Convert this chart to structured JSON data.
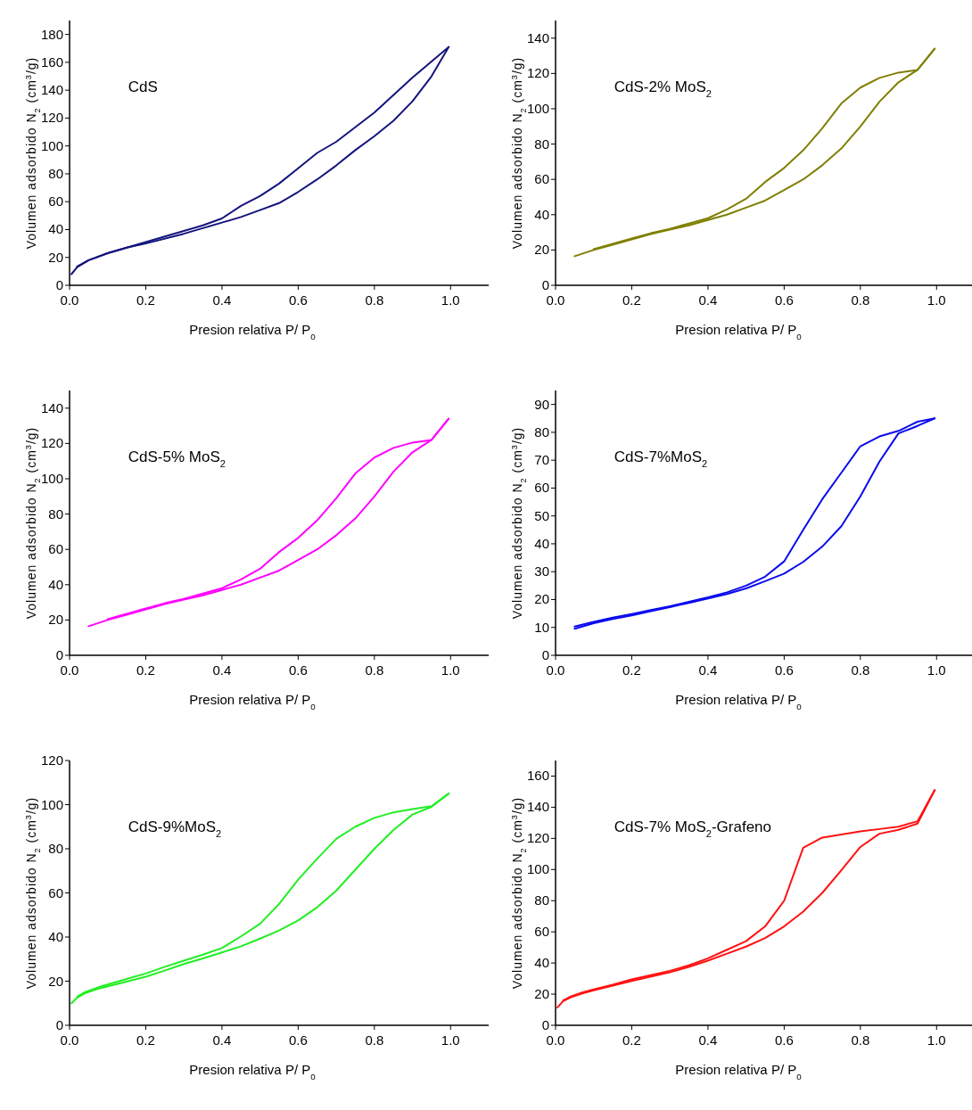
{
  "chart_data": [
    {
      "type": "line",
      "title": "CdS",
      "xlabel": "Presion relativa P/ P$_{0}$",
      "ylabel": "Volumen adsorbido N$_{2}$ (cm$^{3}$/g)",
      "xlim": [
        0,
        1.1
      ],
      "xticks": [
        {
          "value": 0,
          "label": "0.0"
        },
        {
          "value": 0.2,
          "label": "0.2"
        },
        {
          "value": 0.4,
          "label": "0.4"
        },
        {
          "value": 0.6,
          "label": "0.6"
        },
        {
          "value": 0.8,
          "label": "0.8"
        },
        {
          "value": 1,
          "label": "1.0"
        }
      ],
      "ylim": [
        0,
        190
      ],
      "yticks": [
        0,
        20,
        40,
        60,
        80,
        100,
        120,
        140,
        160,
        180
      ],
      "series": [
        {
          "color": "#14147d",
          "x": [
            0.005,
            0.02,
            0.05,
            0.1,
            0.15,
            0.2,
            0.3,
            0.35,
            0.4,
            0.45,
            0.5,
            0.55,
            0.6,
            0.65,
            0.7,
            0.75,
            0.8,
            0.85,
            0.9,
            0.95,
            0.995
          ],
          "values": [
            8,
            13,
            18,
            23,
            27,
            30,
            37,
            41,
            45,
            49,
            54,
            59,
            67,
            76,
            86,
            97,
            107,
            118,
            132,
            150,
            171
          ]
        },
        {
          "color": "#14147d",
          "x": [
            0.02,
            0.05,
            0.1,
            0.2,
            0.3,
            0.35,
            0.4,
            0.45,
            0.5,
            0.55,
            0.6,
            0.65,
            0.7,
            0.8,
            0.9,
            0.995
          ],
          "values": [
            13.5,
            18,
            23,
            31,
            39,
            43,
            48,
            57,
            64,
            73,
            84,
            95,
            103,
            124,
            149,
            171
          ]
        }
      ]
    },
    {
      "type": "line",
      "title": "CdS-2% MoS$_{2}$",
      "xlabel": "Presion relativa P/ P$_{0}$",
      "ylabel": "Volumen adsorbido N$_{2}$ (cm$^{3}$/g)",
      "xlim": [
        0,
        1.1
      ],
      "xticks": [
        {
          "value": 0,
          "label": "0.0"
        },
        {
          "value": 0.2,
          "label": "0.2"
        },
        {
          "value": 0.4,
          "label": "0.4"
        },
        {
          "value": 0.6,
          "label": "0.6"
        },
        {
          "value": 0.8,
          "label": "0.8"
        },
        {
          "value": 1,
          "label": "1.0"
        }
      ],
      "ylim": [
        0,
        150
      ],
      "yticks": [
        0,
        20,
        40,
        60,
        80,
        100,
        120,
        140
      ],
      "series": [
        {
          "color": "#7f7f00",
          "x": [
            0.05,
            0.1,
            0.15,
            0.2,
            0.25,
            0.3,
            0.35,
            0.4,
            0.45,
            0.5,
            0.55,
            0.6,
            0.65,
            0.7,
            0.75,
            0.8,
            0.85,
            0.9,
            0.95,
            0.995
          ],
          "values": [
            16.5,
            20,
            23,
            26,
            29,
            31.5,
            34,
            37,
            40,
            44,
            48,
            54,
            60,
            68,
            77.5,
            90,
            104,
            115,
            122,
            134
          ]
        },
        {
          "color": "#7f7f00",
          "x": [
            0.1,
            0.15,
            0.2,
            0.25,
            0.3,
            0.35,
            0.4,
            0.45,
            0.5,
            0.55,
            0.6,
            0.65,
            0.7,
            0.75,
            0.8,
            0.85,
            0.9,
            0.95,
            0.995
          ],
          "values": [
            20.5,
            23.5,
            26.5,
            29.5,
            32,
            35,
            38,
            43,
            49,
            58.5,
            66.5,
            76.5,
            89,
            103,
            112,
            117.5,
            120.5,
            122,
            134
          ]
        }
      ]
    },
    {
      "type": "line",
      "title": "CdS-5% MoS$_{2}$",
      "xlabel": "Presion relativa P/ P$_{0}$",
      "ylabel": "Volumen adsorbido N$_{2}$ (cm$^{3}$/g)",
      "xlim": [
        0,
        1.1
      ],
      "xticks": [
        {
          "value": 0,
          "label": "0.0"
        },
        {
          "value": 0.2,
          "label": "0.2"
        },
        {
          "value": 0.4,
          "label": "0.4"
        },
        {
          "value": 0.6,
          "label": "0.6"
        },
        {
          "value": 0.8,
          "label": "0.8"
        },
        {
          "value": 1,
          "label": "1.0"
        }
      ],
      "ylim": [
        0,
        150
      ],
      "yticks": [
        0,
        20,
        40,
        60,
        80,
        100,
        120,
        140
      ],
      "series": [
        {
          "color": "#ff00ff",
          "x": [
            0.05,
            0.1,
            0.15,
            0.2,
            0.25,
            0.3,
            0.35,
            0.4,
            0.45,
            0.5,
            0.55,
            0.6,
            0.65,
            0.7,
            0.75,
            0.8,
            0.85,
            0.9,
            0.95,
            0.995
          ],
          "values": [
            16.5,
            20,
            23,
            26,
            29,
            31.5,
            34,
            37,
            40,
            44,
            48,
            54,
            60,
            68,
            77.5,
            90,
            104,
            115,
            122,
            134
          ]
        },
        {
          "color": "#ff00ff",
          "x": [
            0.1,
            0.15,
            0.2,
            0.25,
            0.3,
            0.35,
            0.4,
            0.45,
            0.5,
            0.55,
            0.6,
            0.65,
            0.7,
            0.75,
            0.8,
            0.85,
            0.9,
            0.95,
            0.995
          ],
          "values": [
            20.5,
            23.5,
            26.5,
            29.5,
            32,
            35,
            38,
            43,
            49,
            58.5,
            66.5,
            76.5,
            89,
            103,
            112,
            117.5,
            120.5,
            122,
            134
          ]
        }
      ]
    },
    {
      "type": "line",
      "title": "CdS-7%MoS$_{2}$",
      "xlabel": "Presion relativa P/ P$_{0}$",
      "ylabel": "Volumen adsorbido N$_{2}$ (cm$^{3}$/g)",
      "xlim": [
        0,
        1.1
      ],
      "xticks": [
        {
          "value": 0,
          "label": "0.0"
        },
        {
          "value": 0.2,
          "label": "0.2"
        },
        {
          "value": 0.4,
          "label": "0.4"
        },
        {
          "value": 0.6,
          "label": "0.6"
        },
        {
          "value": 0.8,
          "label": "0.8"
        },
        {
          "value": 1,
          "label": "1.0"
        }
      ],
      "ylim": [
        0,
        95
      ],
      "yticks": [
        0,
        10,
        20,
        30,
        40,
        50,
        60,
        70,
        80,
        90
      ],
      "series": [
        {
          "color": "#0a0aee",
          "x": [
            0.05,
            0.1,
            0.15,
            0.2,
            0.25,
            0.3,
            0.35,
            0.4,
            0.45,
            0.5,
            0.55,
            0.6,
            0.65,
            0.7,
            0.75,
            0.8,
            0.85,
            0.9,
            0.95,
            0.995
          ],
          "values": [
            9.5,
            11.5,
            13,
            14.3,
            15.8,
            17.3,
            18.8,
            20.4,
            22,
            24,
            26.6,
            29.3,
            33.5,
            39,
            46.3,
            57,
            69.5,
            79.6,
            82.3,
            85
          ]
        },
        {
          "color": "#0a0aee",
          "x": [
            0.05,
            0.1,
            0.15,
            0.2,
            0.25,
            0.3,
            0.35,
            0.4,
            0.45,
            0.5,
            0.55,
            0.6,
            0.65,
            0.7,
            0.75,
            0.8,
            0.85,
            0.9,
            0.95,
            0.995
          ],
          "values": [
            10.3,
            12,
            13.5,
            14.8,
            16.2,
            17.6,
            19.2,
            20.8,
            22.6,
            25,
            28.2,
            33.7,
            45,
            56,
            65.5,
            75,
            78.5,
            80.5,
            83.8,
            85
          ]
        }
      ]
    },
    {
      "type": "line",
      "title": "CdS-9%MoS$_{2}$",
      "xlabel": "Presion relativa P/ P$_{0}$",
      "ylabel": "Volumen adsorbido N$_{2}$ (cm$^{3}$/g)",
      "xlim": [
        0,
        1.1
      ],
      "xticks": [
        {
          "value": 0,
          "label": "0.0"
        },
        {
          "value": 0.2,
          "label": "0.2"
        },
        {
          "value": 0.4,
          "label": "0.4"
        },
        {
          "value": 0.6,
          "label": "0.6"
        },
        {
          "value": 0.8,
          "label": "0.8"
        },
        {
          "value": 1,
          "label": "1.0"
        }
      ],
      "ylim": [
        0,
        120
      ],
      "yticks": [
        0,
        20,
        40,
        60,
        80,
        100,
        120
      ],
      "series": [
        {
          "color": "#22ee22",
          "x": [
            0.005,
            0.02,
            0.04,
            0.08,
            0.15,
            0.2,
            0.25,
            0.3,
            0.35,
            0.4,
            0.45,
            0.5,
            0.55,
            0.6,
            0.65,
            0.7,
            0.75,
            0.8,
            0.85,
            0.9,
            0.95,
            0.995
          ],
          "values": [
            10,
            12.5,
            14.5,
            16.8,
            19.8,
            22,
            24.8,
            27.8,
            30.3,
            33,
            35.8,
            39.3,
            43,
            47.5,
            53.5,
            61,
            70.5,
            80,
            88.5,
            95.5,
            99,
            105
          ]
        },
        {
          "color": "#22ee22",
          "x": [
            0.02,
            0.04,
            0.08,
            0.15,
            0.2,
            0.25,
            0.3,
            0.35,
            0.4,
            0.45,
            0.5,
            0.55,
            0.6,
            0.65,
            0.7,
            0.75,
            0.8,
            0.85,
            0.9,
            0.95,
            0.995
          ],
          "values": [
            13,
            15,
            17.5,
            21,
            23.5,
            26.5,
            29.3,
            32,
            35,
            40.3,
            46,
            55,
            66,
            75.5,
            84.5,
            90,
            94,
            96.5,
            98,
            99.3,
            105
          ]
        }
      ]
    },
    {
      "type": "line",
      "title": "CdS-7% MoS$_{2}$-Grafeno",
      "xlabel": "Presion relativa P/ P$_{0}$",
      "ylabel": "Volumen adsorbido N$_{2}$ (cm$^{3}$/g)",
      "xlim": [
        0,
        1.1
      ],
      "xticks": [
        {
          "value": 0,
          "label": "0.0"
        },
        {
          "value": 0.2,
          "label": "0.2"
        },
        {
          "value": 0.4,
          "label": "0.4"
        },
        {
          "value": 0.6,
          "label": "0.6"
        },
        {
          "value": 0.8,
          "label": "0.8"
        },
        {
          "value": 1,
          "label": "1.0"
        }
      ],
      "ylim": [
        0,
        170
      ],
      "yticks": [
        0,
        20,
        40,
        60,
        80,
        100,
        120,
        140,
        160
      ],
      "series": [
        {
          "color": "#ff1111",
          "x": [
            0.005,
            0.02,
            0.04,
            0.07,
            0.1,
            0.15,
            0.2,
            0.3,
            0.35,
            0.4,
            0.45,
            0.5,
            0.55,
            0.6,
            0.65,
            0.7,
            0.75,
            0.8,
            0.85,
            0.9,
            0.95,
            0.995
          ],
          "values": [
            11.5,
            15.5,
            18,
            20.5,
            22.5,
            25.5,
            28.5,
            34,
            37.5,
            41.5,
            46,
            50.5,
            56,
            63.5,
            73,
            85,
            99.5,
            114.5,
            123,
            125.5,
            129.5,
            151
          ]
        },
        {
          "color": "#ff1111",
          "x": [
            0.02,
            0.04,
            0.07,
            0.1,
            0.15,
            0.2,
            0.3,
            0.35,
            0.4,
            0.45,
            0.5,
            0.55,
            0.6,
            0.65,
            0.7,
            0.8,
            0.85,
            0.9,
            0.95,
            0.995
          ],
          "values": [
            16,
            18.5,
            21,
            23,
            26,
            29.5,
            35,
            38.5,
            43,
            48.5,
            54,
            63.5,
            80,
            114,
            120.5,
            124.5,
            126,
            127.5,
            131,
            151
          ]
        }
      ]
    }
  ]
}
